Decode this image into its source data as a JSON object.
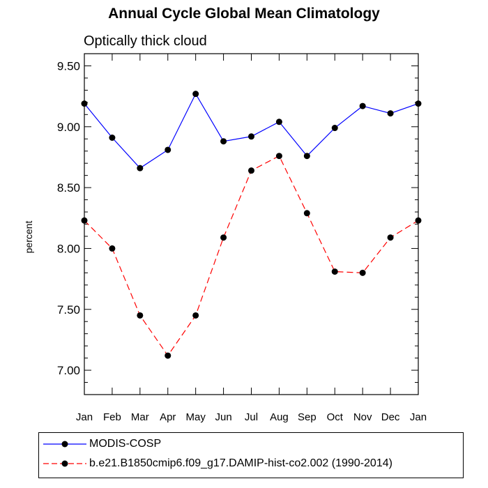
{
  "title": "Annual Cycle Global Mean Climatology",
  "subtitle": "Optically thick cloud",
  "chart_data": {
    "type": "line",
    "title": "Annual Cycle Global Mean Climatology",
    "subtitle": "Optically thick cloud",
    "xlabel": "",
    "ylabel": "percent",
    "categories": [
      "Jan",
      "Feb",
      "Mar",
      "Apr",
      "May",
      "Jun",
      "Jul",
      "Aug",
      "Sep",
      "Oct",
      "Nov",
      "Dec",
      "Jan"
    ],
    "ylim": [
      6.8,
      9.6
    ],
    "yticks": [
      7.0,
      7.5,
      8.0,
      8.5,
      9.0,
      9.5
    ],
    "ytick_labels": [
      "7.00",
      "7.50",
      "8.00",
      "8.50",
      "9.00",
      "9.50"
    ],
    "grid": false,
    "legend_position": "bottom",
    "series": [
      {
        "name": "MODIS-COSP",
        "color": "#0000ff",
        "line_style": "solid",
        "values": [
          9.19,
          8.91,
          8.66,
          8.81,
          9.27,
          8.88,
          8.92,
          9.04,
          8.76,
          8.99,
          9.17,
          9.11,
          9.19
        ]
      },
      {
        "name": "b.e21.B1850cmip6.f09_g17.DAMIP-hist-co2.002 (1990-2014)",
        "color": "#ff0000",
        "line_style": "dashed",
        "values": [
          8.23,
          8.0,
          7.45,
          7.12,
          7.45,
          8.09,
          8.64,
          8.76,
          8.29,
          7.81,
          7.8,
          8.09,
          8.23
        ]
      }
    ]
  }
}
